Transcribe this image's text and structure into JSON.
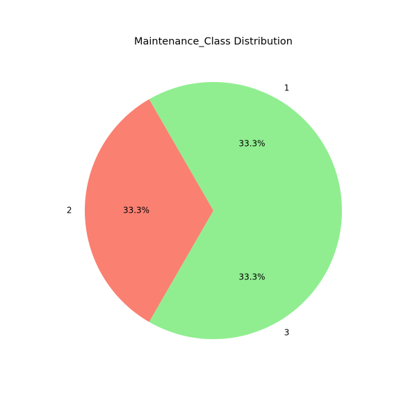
{
  "chart_data": {
    "type": "pie",
    "title": "Maintenance_Class Distribution",
    "categories": [
      "1",
      "3",
      "2"
    ],
    "values": [
      33.3,
      33.3,
      33.3
    ],
    "percent_labels": [
      "33.3%",
      "33.3%",
      "33.3%"
    ],
    "colors": [
      "#90ee90",
      "#90ee90",
      "#fa8072"
    ]
  }
}
